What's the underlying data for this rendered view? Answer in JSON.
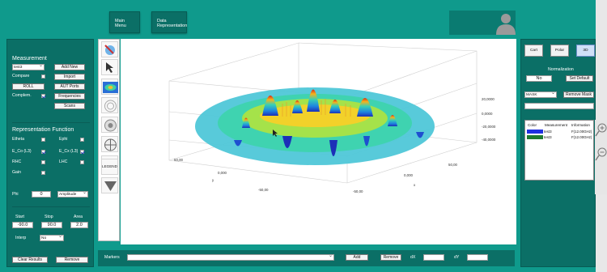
{
  "header": {
    "main_menu": "Main Menu",
    "data_representation": "Data Representation"
  },
  "left_panel": {
    "measurement_title": "Measurement",
    "measurement_select": "test3",
    "buttons": {
      "add_new": "Add New",
      "import": "Import",
      "roll": "ROLL",
      "aut_ports": "AUT Ports",
      "frequencies": "Frequencies",
      "scans": "Scans",
      "clear_results": "Clear Results",
      "remove": "Remove"
    },
    "compare_label": "Compare",
    "complem_label": "Complem.",
    "representation_title": "Representation Function",
    "functions": [
      {
        "label": "Etheta",
        "checked": false
      },
      {
        "label": "Ephi",
        "checked": false
      },
      {
        "label": "E_Co (L3)",
        "checked": true
      },
      {
        "label": "E_Cx (L3)",
        "checked": true
      },
      {
        "label": "RHC",
        "checked": false
      },
      {
        "label": "LHC",
        "checked": false
      },
      {
        "label": "Gain",
        "checked": false
      }
    ],
    "phi_label": "Phi",
    "phi_value": "0",
    "phi_mode": "Amplitude",
    "start_label": "Start",
    "stop_label": "Stop",
    "area_label": "Area",
    "start_value": "-90.0",
    "stop_value": "90.0",
    "area_value": "2.0",
    "interp_label": "Interp",
    "interp_value": "No"
  },
  "toolstrip": {
    "legend_label": "LEGEND"
  },
  "plot": {
    "z_ticks": [
      "20,0000",
      "0,0000",
      "-20,0000",
      "-40,0000"
    ],
    "x_ticks": [
      "50,00",
      "0,000",
      "-50,00"
    ],
    "y_ticks": [
      "50,00",
      "0,000",
      "-50,00"
    ],
    "x_axis_label": "x",
    "y_axis_label": "y"
  },
  "markers_bar": {
    "label": "Markers",
    "add": "Add",
    "remove": "Remove",
    "dx_label": "dX",
    "dy_label": "dY"
  },
  "right_panel": {
    "tabs": [
      "Cart",
      "Polar",
      "3D"
    ],
    "active_tab": "3D",
    "normalization_title": "Normalization",
    "norm_value": "No",
    "set_default": "Set Default",
    "mask_select": "MASK",
    "remove_mask": "Remove Mask",
    "table_headers": [
      "Color",
      "Measurement",
      "Information"
    ],
    "rows": [
      {
        "color": "#1f2fe0",
        "measurement": "test3",
        "information": "F(12.00GHz)"
      },
      {
        "color": "#1f7a2f",
        "measurement": "test3",
        "information": "F(12.00GHz)"
      }
    ]
  },
  "colors": {
    "frame": "#0f9a8c",
    "panel": "#0b6f66",
    "accent_tab": "#cfe0f7"
  }
}
